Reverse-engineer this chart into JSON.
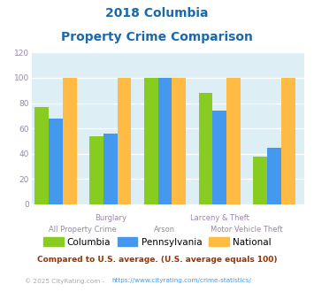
{
  "title_line1": "2018 Columbia",
  "title_line2": "Property Crime Comparison",
  "title_color": "#1a6aab",
  "columbia_values": [
    77,
    54,
    100,
    88,
    38
  ],
  "pennsylvania_values": [
    68,
    56,
    100,
    74,
    45
  ],
  "national_values": [
    100,
    100,
    100,
    100,
    100
  ],
  "columbia_color": "#88cc22",
  "pennsylvania_color": "#4499ee",
  "national_color": "#ffbb44",
  "ylim": [
    0,
    120
  ],
  "yticks": [
    0,
    20,
    40,
    60,
    80,
    100,
    120
  ],
  "plot_bg_color": "#ddeef5",
  "grid_color": "#ffffff",
  "axis_label_color": "#9988aa",
  "legend_labels": [
    "Columbia",
    "Pennsylvania",
    "National"
  ],
  "footnote1": "Compared to U.S. average. (U.S. average equals 100)",
  "footnote2_plain": "© 2025 CityRating.com - ",
  "footnote2_url": "https://www.cityrating.com/crime-statistics/",
  "footnote1_color": "#993300",
  "footnote2_color": "#aaaaaa",
  "footnote2_url_color": "#4499ee",
  "bar_width": 0.23,
  "group_positions": [
    0.45,
    1.35,
    2.25,
    3.15,
    4.05
  ]
}
